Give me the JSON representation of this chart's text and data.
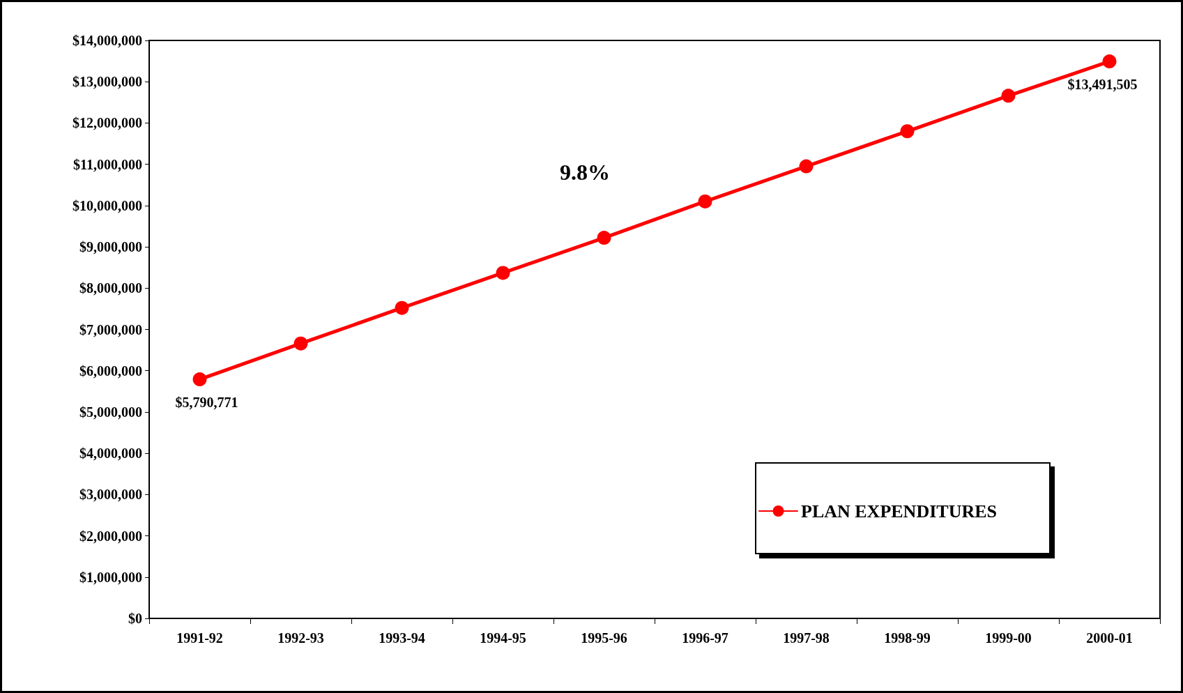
{
  "chart_data": {
    "type": "line",
    "categories": [
      "1991-92",
      "1992-93",
      "1993-94",
      "1994-95",
      "1995-96",
      "1996-97",
      "1997-98",
      "1998-99",
      "1999-00",
      "2000-01"
    ],
    "series": [
      {
        "name": "PLAN EXPENDITURES",
        "color": "#ff0000",
        "values": [
          5790771,
          6660000,
          7520000,
          8370000,
          9220000,
          10100000,
          10950000,
          11800000,
          12660000,
          13491505
        ],
        "value_labels": [
          "$5,790,771",
          null,
          null,
          null,
          null,
          null,
          null,
          null,
          null,
          "$13,491,505"
        ]
      }
    ],
    "ylim": [
      0,
      14000000
    ],
    "yticks": [
      {
        "value": 0,
        "label": "$0"
      },
      {
        "value": 1000000,
        "label": "$1,000,000"
      },
      {
        "value": 2000000,
        "label": "$2,000,000"
      },
      {
        "value": 3000000,
        "label": "$3,000,000"
      },
      {
        "value": 4000000,
        "label": "$4,000,000"
      },
      {
        "value": 5000000,
        "label": "$5,000,000"
      },
      {
        "value": 6000000,
        "label": "$6,000,000"
      },
      {
        "value": 7000000,
        "label": "$7,000,000"
      },
      {
        "value": 8000000,
        "label": "$8,000,000"
      },
      {
        "value": 9000000,
        "label": "$9,000,000"
      },
      {
        "value": 10000000,
        "label": "$10,000,000"
      },
      {
        "value": 11000000,
        "label": "$11,000,000"
      },
      {
        "value": 12000000,
        "label": "$12,000,000"
      },
      {
        "value": 13000000,
        "label": "$13,000,000"
      },
      {
        "value": 14000000,
        "label": "$14,000,000"
      }
    ],
    "annotations": [
      "9.8%"
    ],
    "legend": "bottom right",
    "marker": "circle",
    "line_style": "solid",
    "grid": false
  }
}
